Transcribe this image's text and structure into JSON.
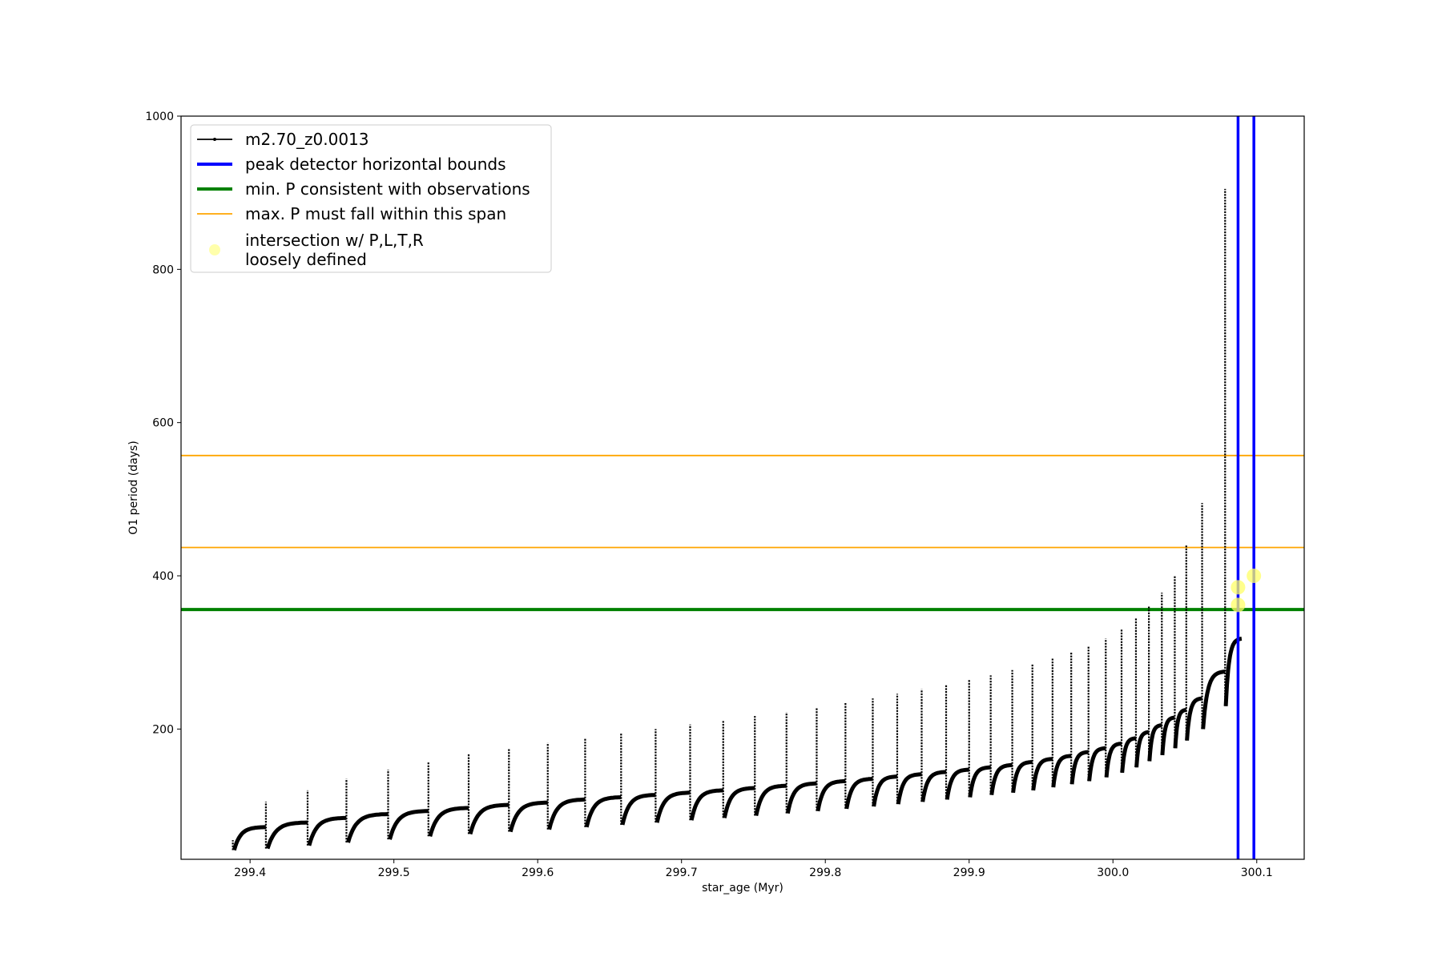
{
  "chart_data": {
    "type": "line",
    "title": "",
    "xlabel": "star_age (Myr)",
    "ylabel": "O1 period (days)",
    "xlim": [
      299.352,
      300.133
    ],
    "ylim": [
      30,
      1000
    ],
    "grid": false,
    "legend_position": "top-left",
    "xticks": [
      {
        "value": 299.4,
        "label": "299.4"
      },
      {
        "value": 299.5,
        "label": "299.5"
      },
      {
        "value": 299.6,
        "label": "299.6"
      },
      {
        "value": 299.7,
        "label": "299.7"
      },
      {
        "value": 299.8,
        "label": "299.8"
      },
      {
        "value": 299.9,
        "label": "299.9"
      },
      {
        "value": 300.0,
        "label": "300.0"
      },
      {
        "value": 300.1,
        "label": "300.1"
      }
    ],
    "yticks": [
      {
        "value": 200,
        "label": "200"
      },
      {
        "value": 400,
        "label": "400"
      },
      {
        "value": 600,
        "label": "600"
      },
      {
        "value": 800,
        "label": "800"
      },
      {
        "value": 1000,
        "label": "1000"
      }
    ],
    "series": [
      {
        "name": "m2.70_z0.0013",
        "color": "#000000",
        "kind": "line-with-markers",
        "pulses": [
          {
            "start": 299.388,
            "base_min": 42,
            "base_end": 72,
            "peak": 55
          },
          {
            "start": 299.411,
            "base_min": 44,
            "base_end": 78,
            "peak": 105
          },
          {
            "start": 299.44,
            "base_min": 48,
            "base_end": 84,
            "peak": 120
          },
          {
            "start": 299.467,
            "base_min": 52,
            "base_end": 89,
            "peak": 135
          },
          {
            "start": 299.496,
            "base_min": 56,
            "base_end": 93,
            "peak": 147
          },
          {
            "start": 299.524,
            "base_min": 60,
            "base_end": 97,
            "peak": 157
          },
          {
            "start": 299.552,
            "base_min": 63,
            "base_end": 101,
            "peak": 167
          },
          {
            "start": 299.58,
            "base_min": 66,
            "base_end": 104,
            "peak": 174
          },
          {
            "start": 299.607,
            "base_min": 69,
            "base_end": 108,
            "peak": 182
          },
          {
            "start": 299.633,
            "base_min": 72,
            "base_end": 111,
            "peak": 188
          },
          {
            "start": 299.658,
            "base_min": 75,
            "base_end": 114,
            "peak": 195
          },
          {
            "start": 299.682,
            "base_min": 78,
            "base_end": 117,
            "peak": 200
          },
          {
            "start": 299.706,
            "base_min": 81,
            "base_end": 120,
            "peak": 206
          },
          {
            "start": 299.729,
            "base_min": 84,
            "base_end": 123,
            "peak": 211
          },
          {
            "start": 299.751,
            "base_min": 87,
            "base_end": 126,
            "peak": 217
          },
          {
            "start": 299.773,
            "base_min": 90,
            "base_end": 129,
            "peak": 222
          },
          {
            "start": 299.794,
            "base_min": 93,
            "base_end": 132,
            "peak": 228
          },
          {
            "start": 299.814,
            "base_min": 96,
            "base_end": 135,
            "peak": 234
          },
          {
            "start": 299.833,
            "base_min": 99,
            "base_end": 138,
            "peak": 240
          },
          {
            "start": 299.85,
            "base_min": 102,
            "base_end": 141,
            "peak": 246
          },
          {
            "start": 299.867,
            "base_min": 105,
            "base_end": 144,
            "peak": 252
          },
          {
            "start": 299.884,
            "base_min": 108,
            "base_end": 147,
            "peak": 258
          },
          {
            "start": 299.9,
            "base_min": 111,
            "base_end": 150,
            "peak": 264
          },
          {
            "start": 299.915,
            "base_min": 114,
            "base_end": 153,
            "peak": 270
          },
          {
            "start": 299.93,
            "base_min": 117,
            "base_end": 157,
            "peak": 277
          },
          {
            "start": 299.944,
            "base_min": 120,
            "base_end": 161,
            "peak": 285
          },
          {
            "start": 299.958,
            "base_min": 124,
            "base_end": 165,
            "peak": 292
          },
          {
            "start": 299.971,
            "base_min": 128,
            "base_end": 170,
            "peak": 300
          },
          {
            "start": 299.983,
            "base_min": 132,
            "base_end": 175,
            "peak": 308
          },
          {
            "start": 299.995,
            "base_min": 137,
            "base_end": 181,
            "peak": 318
          },
          {
            "start": 300.006,
            "base_min": 143,
            "base_end": 188,
            "peak": 330
          },
          {
            "start": 300.016,
            "base_min": 150,
            "base_end": 196,
            "peak": 345
          },
          {
            "start": 300.025,
            "base_min": 158,
            "base_end": 205,
            "peak": 360
          },
          {
            "start": 300.034,
            "base_min": 166,
            "base_end": 215,
            "peak": 378
          },
          {
            "start": 300.043,
            "base_min": 175,
            "base_end": 225,
            "peak": 400
          },
          {
            "start": 300.051,
            "base_min": 185,
            "base_end": 240,
            "peak": 440
          },
          {
            "start": 300.062,
            "base_min": 200,
            "base_end": 275,
            "peak": 495
          },
          {
            "start": 300.078,
            "base_min": 230,
            "base_end": 318,
            "peak": 905
          }
        ]
      },
      {
        "name": "peak detector horizontal bounds",
        "color": "#0000ff",
        "kind": "vline",
        "x": [
          300.087,
          300.098
        ]
      },
      {
        "name": "min. P consistent with observations",
        "color": "#008000",
        "kind": "hline",
        "y": [
          356
        ]
      },
      {
        "name": "max. P must fall within this span",
        "color": "#ffa500",
        "kind": "hline",
        "y": [
          437,
          557
        ]
      },
      {
        "name": "intersection w/ P,L,T,R\nloosely defined",
        "color": "#ffff66",
        "kind": "marker",
        "points": [
          {
            "x": 300.087,
            "y": 385
          },
          {
            "x": 300.087,
            "y": 362
          },
          {
            "x": 300.098,
            "y": 400
          }
        ]
      }
    ]
  }
}
